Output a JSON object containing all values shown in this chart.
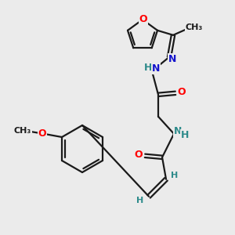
{
  "bg_color": "#ebebeb",
  "bond_color": "#1a1a1a",
  "atom_colors": {
    "O": "#ff0000",
    "N": "#1414cd",
    "H": "#2e8b8b",
    "C": "#1a1a1a"
  },
  "figsize": [
    3.0,
    3.0
  ],
  "dpi": 100
}
